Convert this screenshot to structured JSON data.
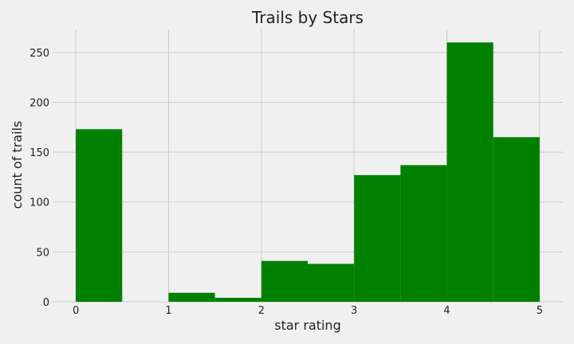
{
  "chart_data": {
    "type": "bar",
    "title": "Trails by Stars",
    "xlabel": "star rating",
    "ylabel": "count of trails",
    "bins": [
      {
        "start": 0.0,
        "end": 0.5,
        "value": 173
      },
      {
        "start": 0.5,
        "end": 1.0,
        "value": 0
      },
      {
        "start": 1.0,
        "end": 1.5,
        "value": 9
      },
      {
        "start": 1.5,
        "end": 2.0,
        "value": 4
      },
      {
        "start": 2.0,
        "end": 2.5,
        "value": 41
      },
      {
        "start": 2.5,
        "end": 3.0,
        "value": 38
      },
      {
        "start": 3.0,
        "end": 3.5,
        "value": 127
      },
      {
        "start": 3.5,
        "end": 4.0,
        "value": 137
      },
      {
        "start": 4.0,
        "end": 4.5,
        "value": 260
      },
      {
        "start": 4.5,
        "end": 5.0,
        "value": 165
      }
    ],
    "xticks": [
      "0",
      "1",
      "2",
      "3",
      "4",
      "5"
    ],
    "yticks": [
      "0",
      "50",
      "100",
      "150",
      "200",
      "250"
    ],
    "xlim": [
      -0.25,
      5.25
    ],
    "ylim": [
      0,
      273
    ],
    "grid": true,
    "bar_color": "#008000",
    "background_color": "#f0f0f0"
  }
}
